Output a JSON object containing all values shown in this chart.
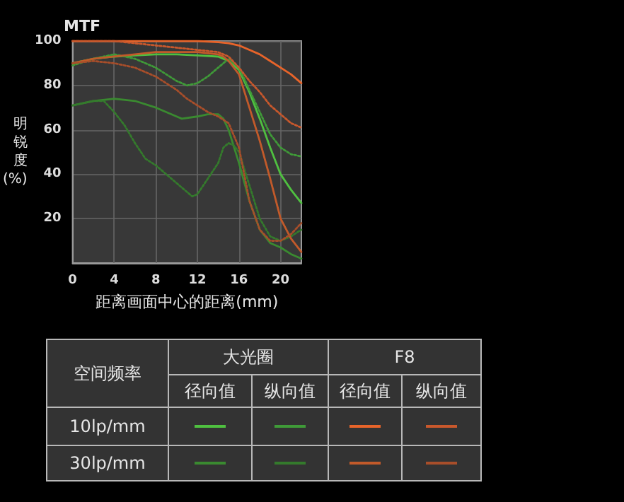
{
  "chart_data": {
    "type": "line",
    "title": "MTF",
    "xlabel": "距离画面中心的距离(mm)",
    "ylabel": "明锐度(%)",
    "xlim": [
      0,
      22
    ],
    "xticks": [
      0,
      4,
      8,
      12,
      16,
      20
    ],
    "ylim": [
      0,
      100
    ],
    "yticks": [
      20,
      40,
      60,
      80,
      100
    ],
    "grid": true,
    "marker": "none",
    "series": [
      {
        "color": "#4fc040",
        "line_style": "solid",
        "x": [
          0,
          2,
          4,
          6,
          8,
          10,
          12,
          14,
          14.5,
          15,
          16,
          17,
          18,
          19,
          20,
          21,
          22
        ],
        "values": [
          90,
          92,
          93,
          93.5,
          94,
          94,
          93.5,
          93,
          92,
          91,
          87,
          77,
          65,
          52,
          40,
          33,
          27
        ]
      },
      {
        "color": "#3f9a38",
        "line_style": "dotted",
        "x": [
          0,
          2,
          4,
          6,
          8,
          10,
          11,
          12,
          13,
          14,
          15,
          16,
          17,
          18,
          19,
          20,
          21,
          22
        ],
        "values": [
          89,
          92,
          94,
          92,
          88,
          82,
          80,
          81,
          84,
          88,
          92,
          88,
          78,
          68,
          58,
          52,
          49,
          48
        ]
      },
      {
        "color": "#e8642a",
        "line_style": "solid",
        "x": [
          0,
          2,
          4,
          8,
          12,
          14,
          15,
          16,
          17,
          18,
          19,
          20,
          21,
          22
        ],
        "values": [
          100,
          100,
          100,
          100,
          100,
          99.5,
          99,
          98,
          96,
          94,
          91,
          88,
          85,
          81
        ]
      },
      {
        "color": "#c9582c",
        "line_style": "dotted",
        "x": [
          0,
          4,
          6,
          8,
          10,
          12,
          14,
          15,
          16,
          17,
          18,
          19,
          20,
          21,
          22
        ],
        "values": [
          100,
          100,
          99,
          98,
          97,
          96,
          95,
          93,
          88,
          82,
          77,
          71,
          67,
          63,
          61
        ]
      },
      {
        "color": "#3a8a30",
        "line_style": "solid",
        "x": [
          0,
          2,
          4,
          6,
          8,
          10,
          10.5,
          12,
          13,
          14,
          14.5,
          15,
          16,
          17,
          18,
          19,
          20,
          21,
          22
        ],
        "values": [
          71,
          73,
          74,
          73,
          70,
          66,
          65,
          66,
          67,
          67,
          65,
          60,
          45,
          28,
          15,
          9,
          7,
          4,
          2
        ]
      },
      {
        "color": "#347a2c",
        "line_style": "dotted",
        "x": [
          0,
          2,
          3,
          4,
          5,
          6,
          7,
          8,
          8.5,
          10,
          11,
          11.5,
          12,
          13,
          14,
          14.5,
          15,
          15.5,
          16,
          17,
          18,
          19,
          20,
          21,
          22
        ],
        "values": [
          71,
          73,
          73,
          68,
          62,
          54,
          47,
          44,
          42,
          36,
          32,
          30,
          31,
          38,
          45,
          52,
          54,
          53,
          50,
          35,
          20,
          12,
          10,
          12,
          15
        ]
      },
      {
        "color": "#c25a2a",
        "line_style": "solid",
        "x": [
          0,
          2,
          4,
          6,
          8,
          10,
          12,
          14,
          14.5,
          15,
          16,
          17,
          18,
          19,
          20,
          21,
          22
        ],
        "values": [
          90,
          92,
          93,
          94,
          95,
          95,
          95,
          94,
          93,
          91,
          85,
          70,
          55,
          38,
          20,
          11,
          5
        ]
      },
      {
        "color": "#a84e2a",
        "line_style": "dotted",
        "x": [
          0,
          2,
          4,
          6,
          8,
          10,
          11,
          12,
          13,
          14,
          15,
          16,
          16.5,
          17,
          18,
          19,
          20,
          21,
          22
        ],
        "values": [
          90,
          91,
          90,
          88,
          84,
          78,
          74,
          71,
          68,
          66,
          63,
          52,
          40,
          28,
          15,
          10,
          10,
          13,
          18
        ]
      }
    ],
    "annotations": [
      "空间频率",
      "大光圈",
      "F8",
      "径向值",
      "纵向值",
      "径向值",
      "纵向值",
      "10lp/mm",
      "30lp/mm"
    ]
  }
}
